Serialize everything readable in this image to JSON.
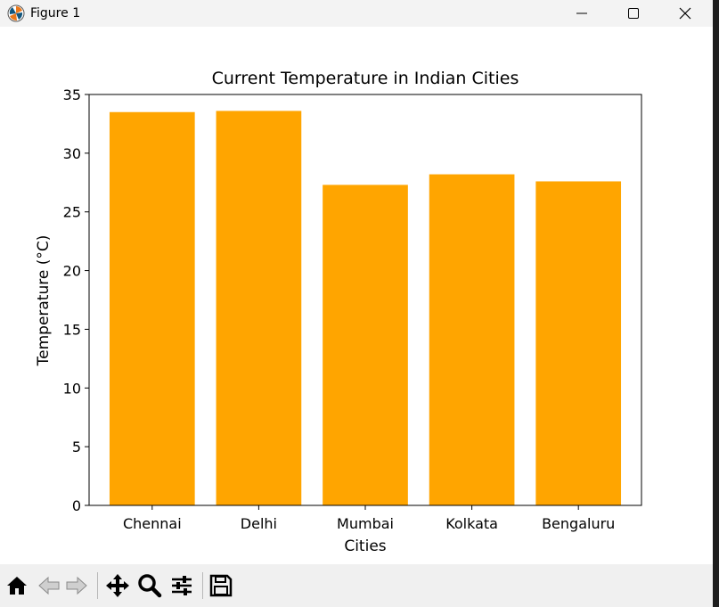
{
  "window": {
    "title": "Figure 1",
    "controls": [
      "minimize",
      "maximize",
      "close"
    ]
  },
  "toolbar": {
    "tools": [
      {
        "name": "home-icon"
      },
      {
        "name": "back-icon"
      },
      {
        "name": "forward-icon"
      },
      {
        "name": "pan-icon"
      },
      {
        "name": "zoom-icon"
      },
      {
        "name": "configure-subplots-icon"
      },
      {
        "name": "save-icon"
      }
    ]
  },
  "chart_data": {
    "type": "bar",
    "title": "Current Temperature in Indian Cities",
    "xlabel": "Cities",
    "ylabel": "Temperature (°C)",
    "categories": [
      "Chennai",
      "Delhi",
      "Mumbai",
      "Kolkata",
      "Bengaluru"
    ],
    "values": [
      33.5,
      33.6,
      27.3,
      28.2,
      27.6
    ],
    "ylim": [
      0,
      35
    ],
    "yticks": [
      "0",
      "5",
      "10",
      "15",
      "20",
      "25",
      "30",
      "35"
    ],
    "bar_color": "#ffa500",
    "grid": false,
    "legend": "none"
  }
}
